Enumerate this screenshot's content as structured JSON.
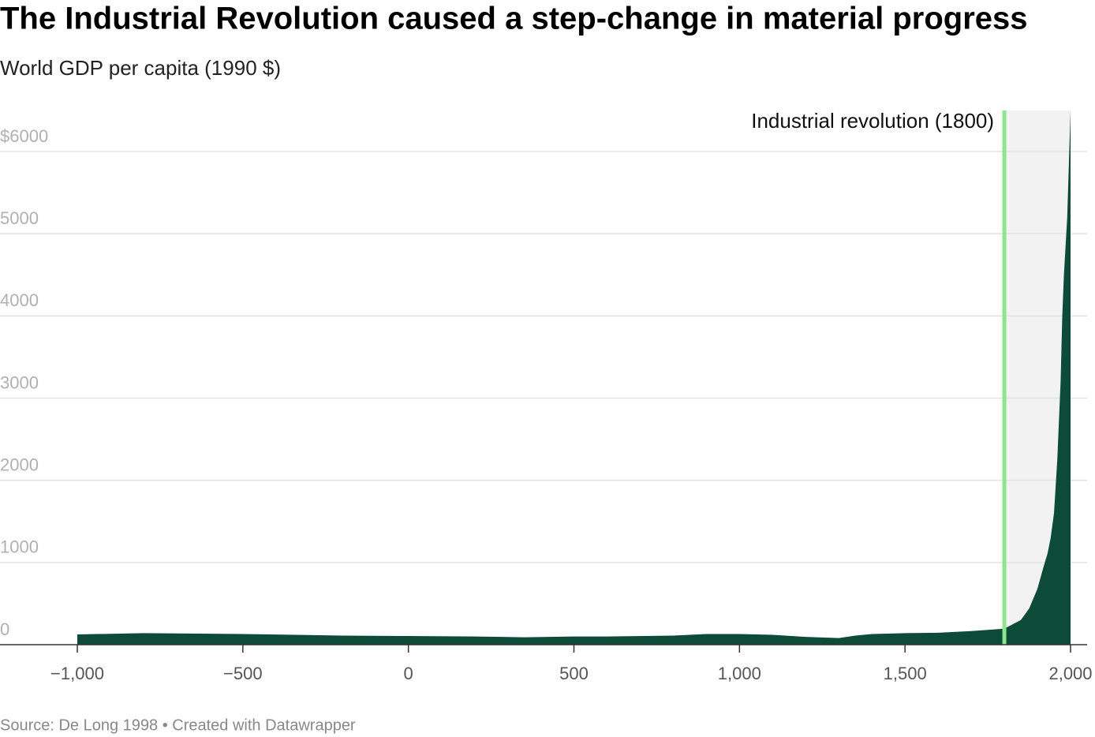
{
  "chart_data": {
    "type": "area",
    "title": "The Industrial Revolution caused a step-change in material progress",
    "subtitle": "World GDP per capita (1990 $)",
    "source": "Source: De Long 1998 • Created with Datawrapper",
    "x": [
      -1000,
      -800,
      -500,
      -200,
      0,
      200,
      350,
      500,
      600,
      800,
      900,
      1000,
      1100,
      1200,
      1300,
      1350,
      1400,
      1500,
      1600,
      1700,
      1750,
      1800,
      1850,
      1875,
      1900,
      1920,
      1930,
      1940,
      1950,
      1960,
      1970,
      1975,
      1980,
      1990,
      2000
    ],
    "series": [
      {
        "name": "World GDP per capita",
        "color": "#0d4a37",
        "values": [
          125,
          140,
          130,
          110,
          105,
          100,
          90,
          100,
          100,
          110,
          130,
          130,
          120,
          95,
          80,
          110,
          130,
          140,
          145,
          165,
          180,
          195,
          300,
          440,
          680,
          970,
          1100,
          1300,
          1600,
          2250,
          3200,
          4000,
          4500,
          5200,
          6500
        ]
      }
    ],
    "xlim": [
      -1000,
      2000
    ],
    "ylim": [
      0,
      6500
    ],
    "xticks": [
      {
        "value": -1000,
        "label": "−1,000"
      },
      {
        "value": -500,
        "label": "−500"
      },
      0,
      500,
      {
        "value": 1000,
        "label": "1,000"
      },
      {
        "value": 1500,
        "label": "1,500"
      },
      {
        "value": 2000,
        "label": "2,000"
      }
    ],
    "yticks": [
      0,
      1000,
      2000,
      3000,
      4000,
      5000,
      {
        "value": 6000,
        "label": "$6000"
      }
    ],
    "grid": true,
    "annotation": {
      "x": 1800,
      "label": "Industrial revolution (1800)",
      "color": "#8ee58f"
    }
  }
}
